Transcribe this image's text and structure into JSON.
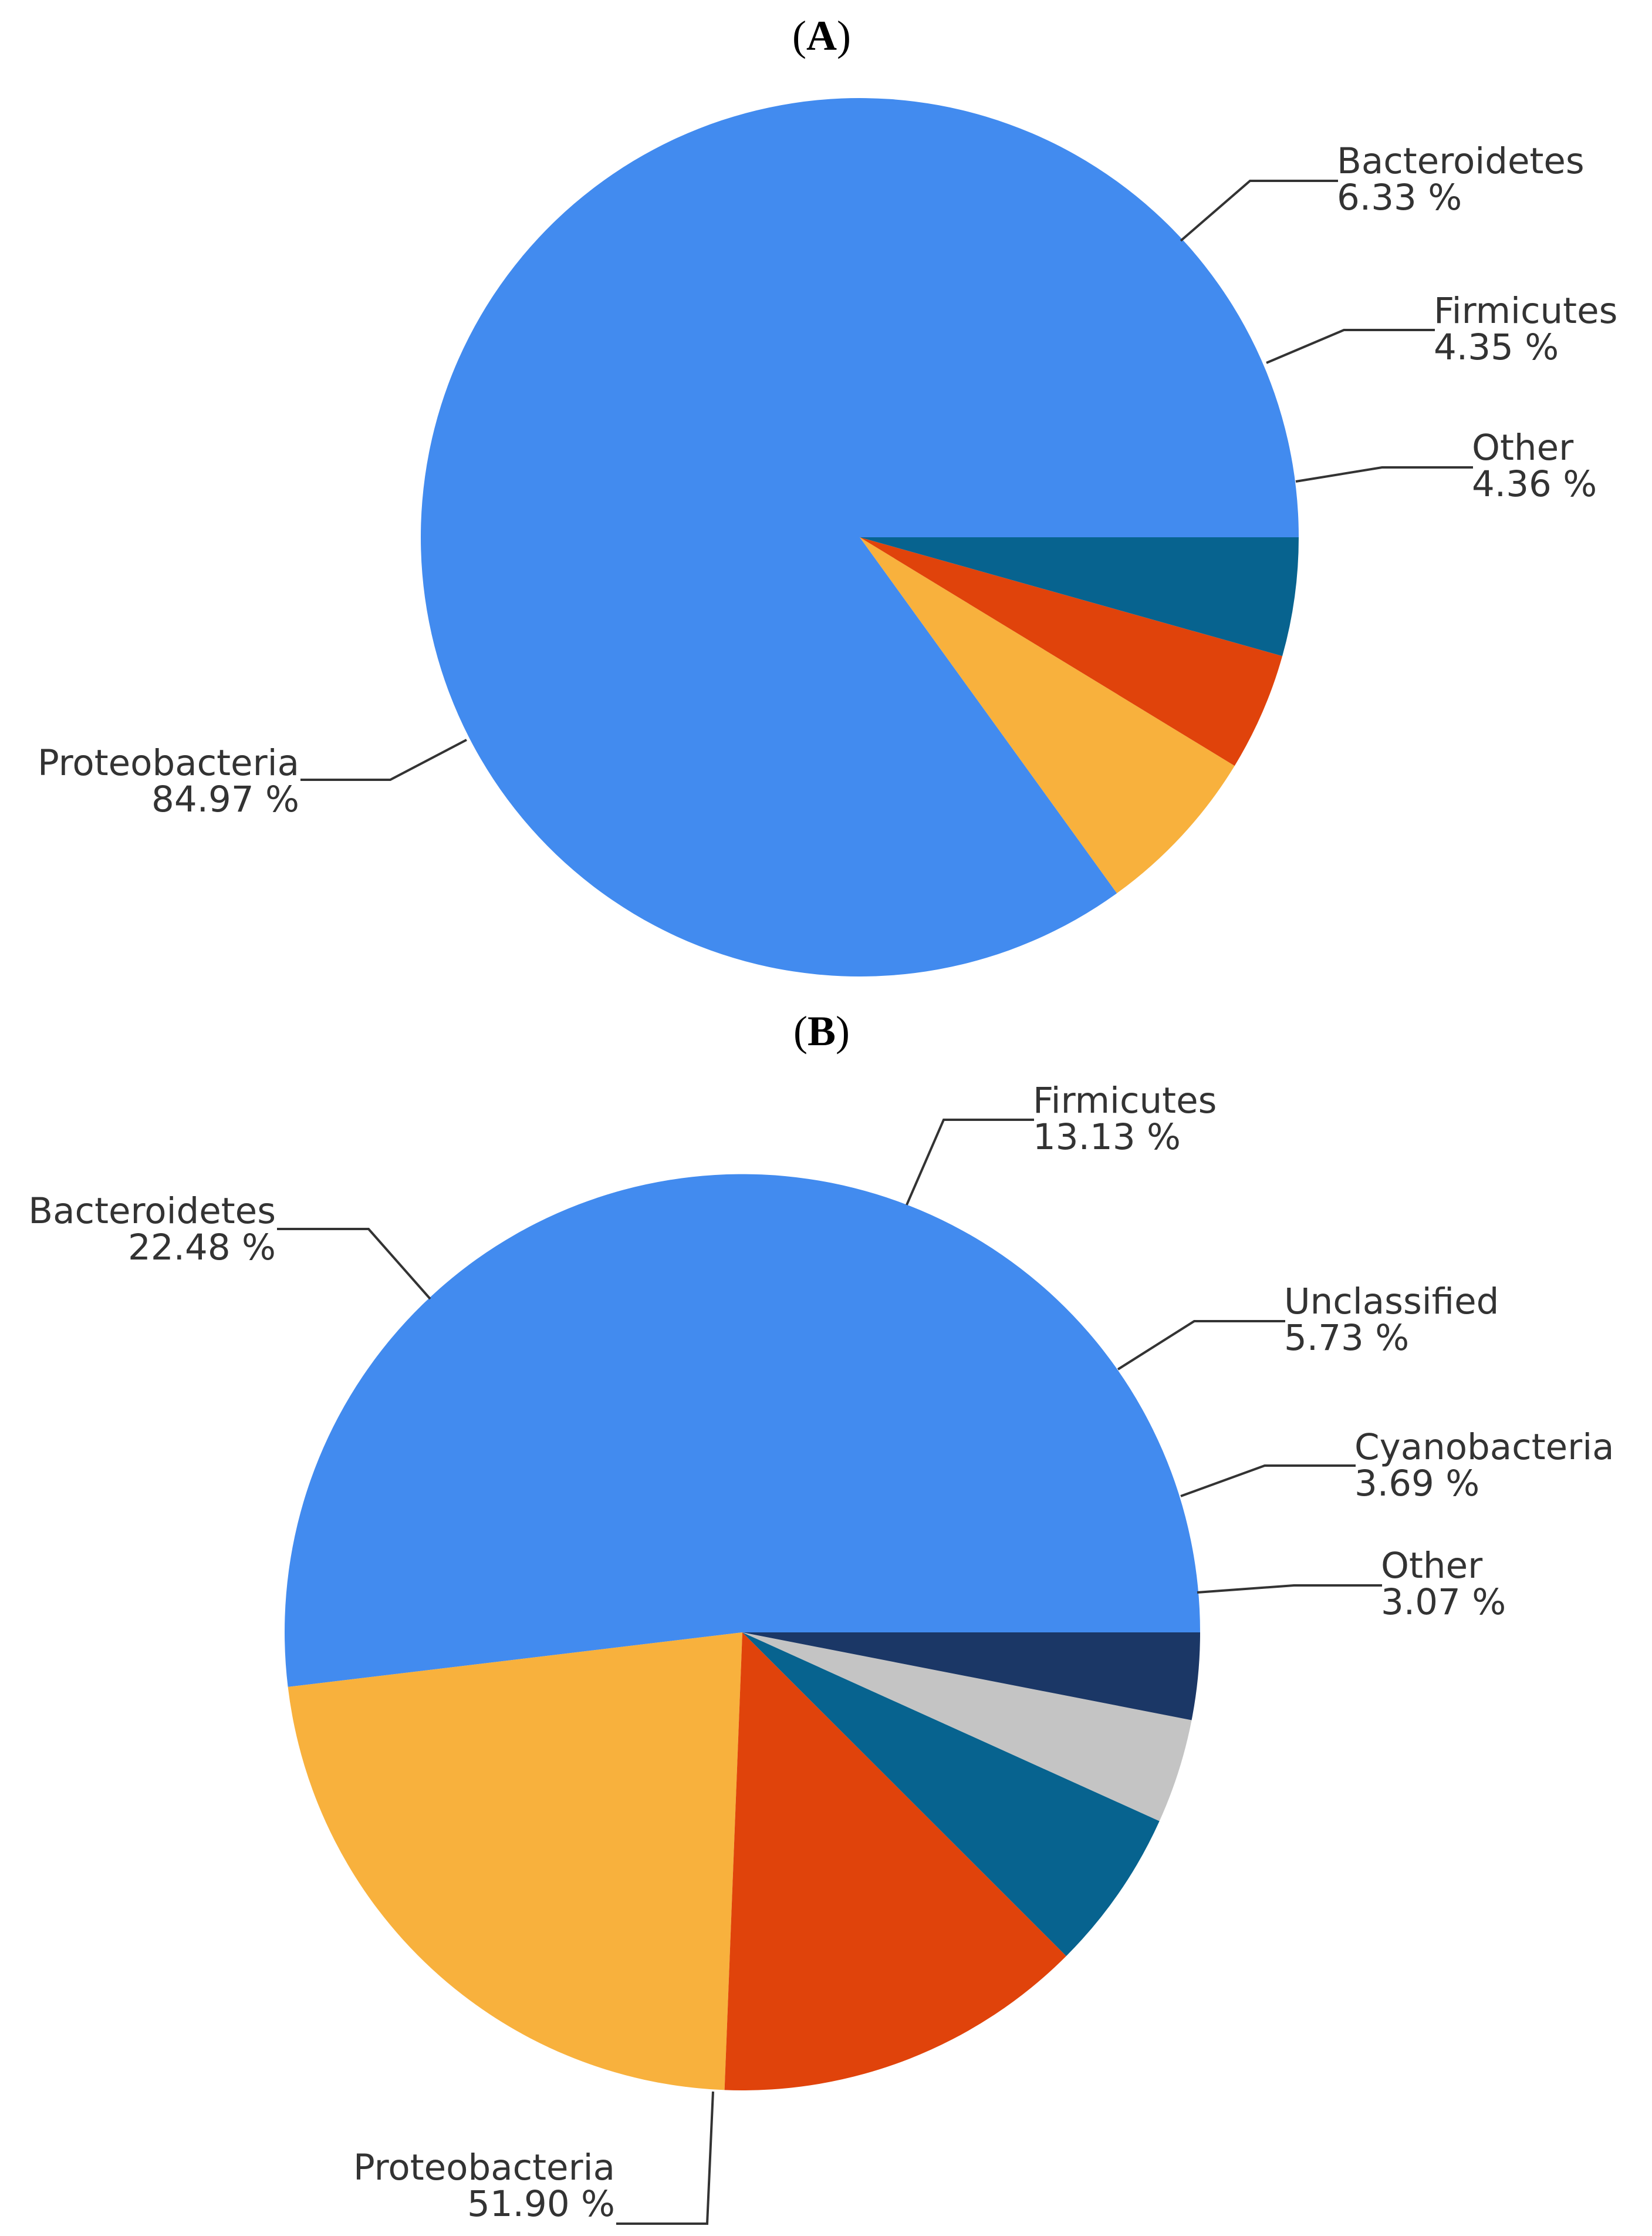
{
  "chart_data": [
    {
      "type": "pie",
      "panel": "A",
      "slices": [
        {
          "label": "Proteobacteria",
          "value": 84.97,
          "value_text": "84.97 %",
          "color": "#428bef"
        },
        {
          "label": "Bacteroidetes",
          "value": 6.33,
          "value_text": "6.33 %",
          "color": "#f8b13d"
        },
        {
          "label": "Firmicutes",
          "value": 4.35,
          "value_text": "4.35 %",
          "color": "#e0430b"
        },
        {
          "label": "Other",
          "value": 4.36,
          "value_text": "4.36 %",
          "color": "#07638f"
        }
      ]
    },
    {
      "type": "pie",
      "panel": "B",
      "slices": [
        {
          "label": "Proteobacteria",
          "value": 51.9,
          "value_text": "51.90 %",
          "color": "#428bef"
        },
        {
          "label": "Bacteroidetes",
          "value": 22.48,
          "value_text": "22.48 %",
          "color": "#f8b13d"
        },
        {
          "label": "Firmicutes",
          "value": 13.13,
          "value_text": "13.13 %",
          "color": "#e0430b"
        },
        {
          "label": "Unclassified",
          "value": 5.73,
          "value_text": "5.73 %",
          "color": "#07638f"
        },
        {
          "label": "Cyanobacteria",
          "value": 3.69,
          "value_text": "3.69 %",
          "color": "#c4c4c4"
        },
        {
          "label": "Other",
          "value": 3.07,
          "value_text": "3.07 %",
          "color": "#1b3766"
        }
      ]
    }
  ]
}
